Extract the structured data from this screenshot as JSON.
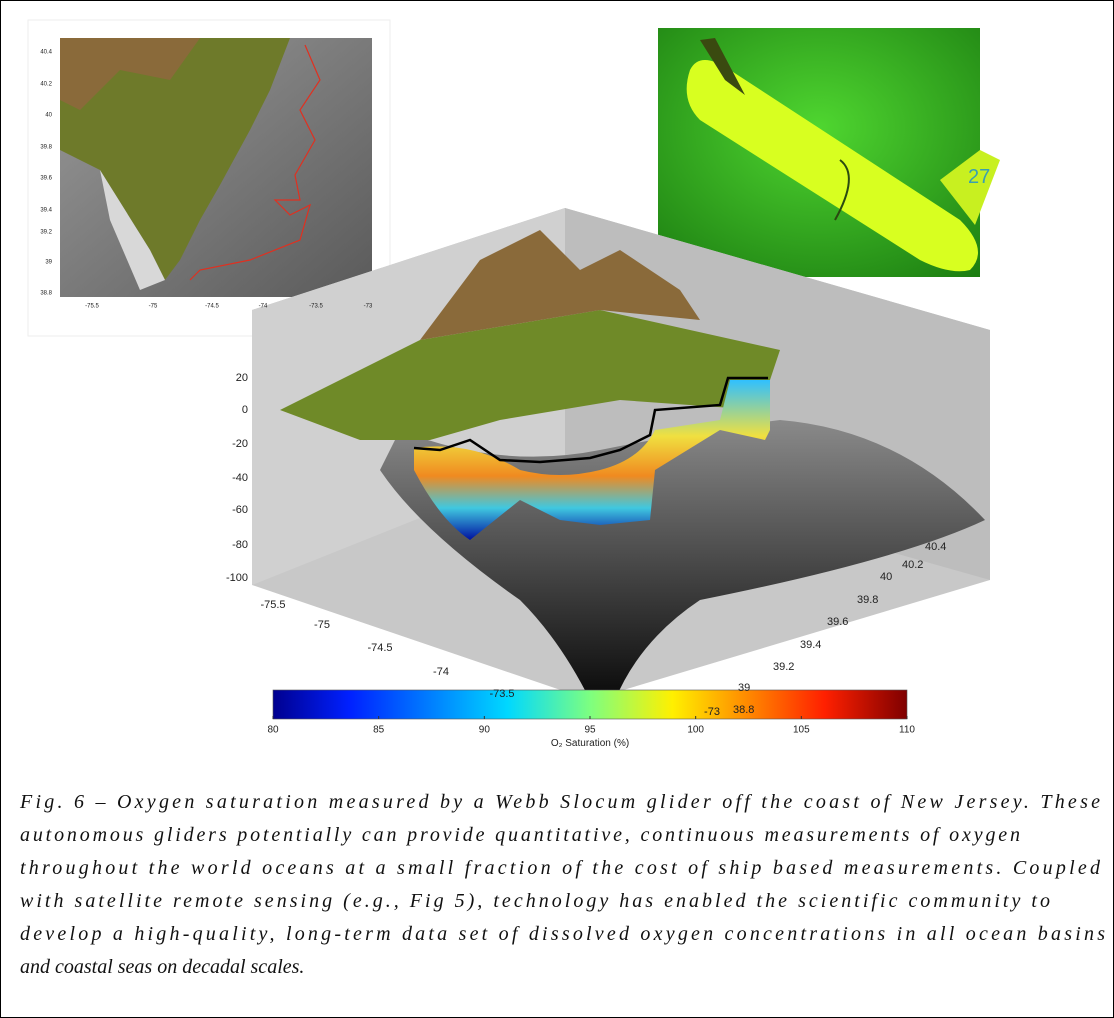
{
  "map_inset": {
    "yticks": [
      40.4,
      40.2,
      40,
      39.8,
      39.6,
      39.4,
      39.2,
      39,
      38.8
    ],
    "xticks": [
      -75.5,
      -75,
      -74.5,
      -74,
      -73.5,
      -73
    ]
  },
  "glider_photo": {
    "label": "27"
  },
  "plot_3d": {
    "zticks": [
      20,
      0,
      -20,
      -40,
      -60,
      -80,
      -100
    ],
    "xticks": [
      -75.5,
      -75,
      -74.5,
      -74,
      -73.5,
      -73
    ],
    "yticks": [
      38.8,
      39,
      39.2,
      39.4,
      39.6,
      39.8,
      40,
      40.2,
      40.4
    ]
  },
  "colorbar": {
    "ticks": [
      80,
      85,
      90,
      95,
      100,
      105,
      110
    ],
    "label": "O₂ Saturation (%)"
  },
  "caption": {
    "lines": [
      "Fig. 6 – Oxygen saturation measured by a Webb Slocum glider off the coast of New Jersey.  These",
      "autonomous gliders potentially can provide quantitative, continuous measurements of oxygen",
      "throughout the world oceans at a small fraction of the cost of ship based measurements.  Coupled",
      "with satellite remote sensing (e.g., Fig 5), technology has enabled the scientific community to",
      "develop a high-quality, long-term data set of dissolved oxygen concentrations in all ocean basins",
      "and coastal seas on decadal scales."
    ]
  }
}
